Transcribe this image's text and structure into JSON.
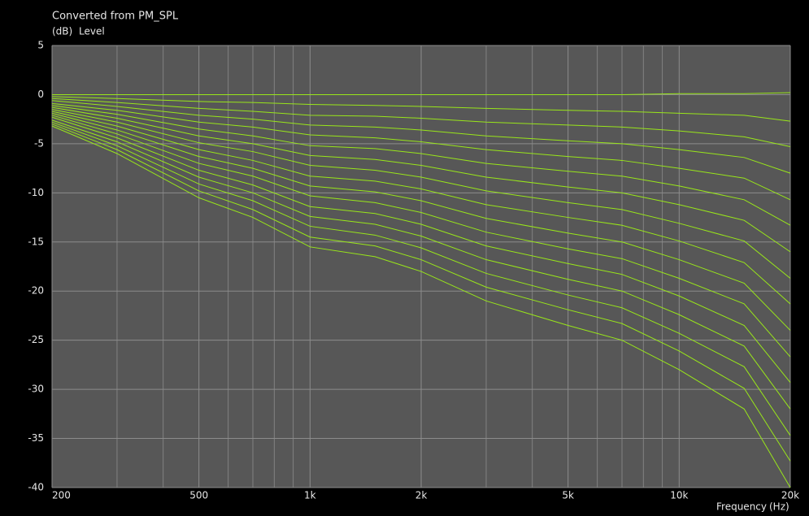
{
  "chart_data": {
    "type": "line",
    "title": "Converted from PM_SPL",
    "y_unit": "(dB)",
    "y_label": "Level",
    "x_label": "Frequency",
    "x_unit": "(Hz)",
    "x_scale": "log",
    "x": [
      200,
      300,
      500,
      700,
      1000,
      1500,
      2000,
      3000,
      5000,
      7000,
      10000,
      15000,
      20000
    ],
    "xlim": [
      200,
      20000
    ],
    "xticks": [
      200,
      500,
      {
        "value": 1000,
        "label": "1k"
      },
      {
        "value": 2000,
        "label": "2k"
      },
      {
        "value": 5000,
        "label": "5k"
      },
      {
        "value": 10000,
        "label": "10k"
      },
      {
        "value": 20000,
        "label": "20k"
      }
    ],
    "x_minor_grid": [
      300,
      400,
      600,
      700,
      800,
      900,
      3000,
      4000,
      6000,
      7000,
      8000,
      9000
    ],
    "ylim": [
      -40,
      5
    ],
    "yticks": [
      5,
      0,
      -5,
      -10,
      -15,
      -20,
      -25,
      -30,
      -35,
      -40
    ],
    "grid": true,
    "color": "#99e61a",
    "series": [
      {
        "values": [
          0,
          0,
          0,
          0,
          0,
          0,
          0,
          0,
          0,
          0,
          0.1,
          0.1,
          0.2
        ]
      },
      {
        "values": [
          -0.2,
          -0.4,
          -0.7,
          -0.8,
          -1.0,
          -1.1,
          -1.2,
          -1.4,
          -1.6,
          -1.7,
          -1.9,
          -2.1,
          -2.7
        ]
      },
      {
        "values": [
          -0.4,
          -0.8,
          -1.4,
          -1.7,
          -2.1,
          -2.2,
          -2.4,
          -2.8,
          -3.1,
          -3.3,
          -3.7,
          -4.3,
          -5.3
        ]
      },
      {
        "values": [
          -0.6,
          -1.2,
          -2.1,
          -2.5,
          -3.1,
          -3.3,
          -3.6,
          -4.2,
          -4.7,
          -5,
          -5.6,
          -6.4,
          -8
        ]
      },
      {
        "values": [
          -0.9,
          -1.6,
          -2.8,
          -3.3,
          -4.1,
          -4.4,
          -4.8,
          -5.6,
          -6.3,
          -6.7,
          -7.5,
          -8.5,
          -10.7
        ]
      },
      {
        "values": [
          -1.1,
          -2,
          -3.5,
          -4.2,
          -5.2,
          -5.5,
          -6,
          -7,
          -7.8,
          -8.3,
          -9.3,
          -10.7,
          -13.3
        ]
      },
      {
        "values": [
          -1.3,
          -2.4,
          -4.2,
          -5,
          -6.2,
          -6.6,
          -7.2,
          -8.4,
          -9.4,
          -10,
          -11.2,
          -12.8,
          -16
        ]
      },
      {
        "values": [
          -1.5,
          -2.8,
          -4.9,
          -5.8,
          -7.2,
          -7.7,
          -8.4,
          -9.8,
          -11,
          -11.7,
          -13.1,
          -14.9,
          -18.7
        ]
      },
      {
        "values": [
          -1.7,
          -3.2,
          -5.6,
          -6.7,
          -8.3,
          -8.8,
          -9.6,
          -11.2,
          -12.5,
          -13.3,
          -14.9,
          -17.1,
          -21.3
        ]
      },
      {
        "values": [
          -1.9,
          -3.6,
          -6.3,
          -7.5,
          -9.3,
          -9.9,
          -10.8,
          -12.6,
          -14.1,
          -15,
          -16.8,
          -19.2,
          -24
        ]
      },
      {
        "values": [
          -2.1,
          -4,
          -7,
          -8.3,
          -10.3,
          -11,
          -12,
          -14,
          -15.7,
          -16.7,
          -18.7,
          -21.3,
          -26.7
        ]
      },
      {
        "values": [
          -2.3,
          -4.4,
          -7.7,
          -9.2,
          -11.4,
          -12.1,
          -13.2,
          -15.4,
          -17.2,
          -18.3,
          -20.5,
          -23.5,
          -29.3
        ]
      },
      {
        "values": [
          -2.6,
          -4.8,
          -8.4,
          -10,
          -12.4,
          -13.2,
          -14.4,
          -16.8,
          -18.8,
          -20,
          -22.4,
          -25.6,
          -32
        ]
      },
      {
        "values": [
          -2.8,
          -5.2,
          -9.1,
          -10.8,
          -13.4,
          -14.3,
          -15.6,
          -18.2,
          -20.4,
          -21.7,
          -24.3,
          -27.7,
          -34.7
        ]
      },
      {
        "values": [
          -3,
          -5.6,
          -9.8,
          -11.7,
          -14.5,
          -15.4,
          -16.8,
          -19.6,
          -21.9,
          -23.3,
          -26.1,
          -29.9,
          -37.3
        ]
      },
      {
        "values": [
          -3.2,
          -6,
          -10.5,
          -12.5,
          -15.5,
          -16.5,
          -18,
          -21,
          -23.5,
          -25,
          -28,
          -32,
          -40
        ]
      }
    ]
  }
}
